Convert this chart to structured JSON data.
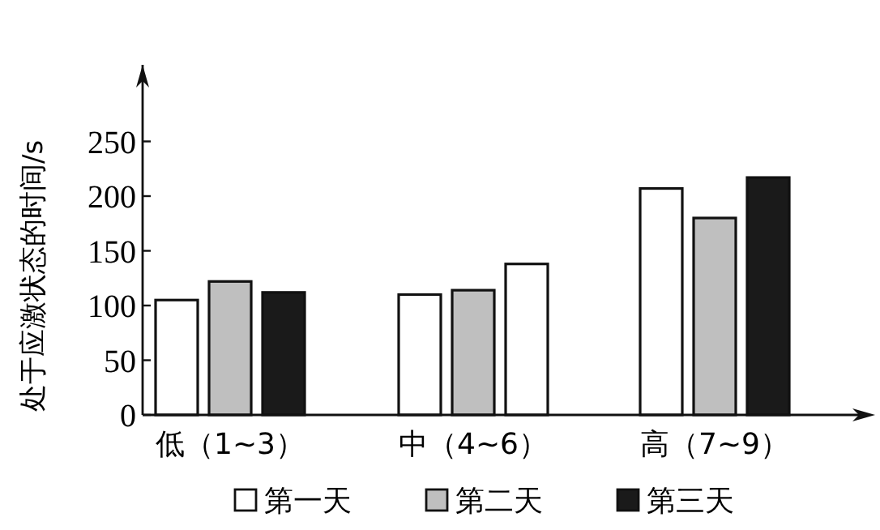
{
  "chart_data": {
    "type": "bar",
    "ylabel": "处于应激状态的时间/s",
    "categories": [
      "低（1~3）",
      "中（4~6）",
      "高（7~9）"
    ],
    "series": [
      {
        "name": "第一天",
        "color": "#ffffff",
        "values": [
          105,
          110,
          207
        ]
      },
      {
        "name": "第二天",
        "color": "#bfbfbf",
        "values": [
          122,
          114,
          180
        ]
      },
      {
        "name": "第三天",
        "color": "#1a1a1a",
        "colors": [
          "#1a1a1a",
          "#ffffff",
          "#1a1a1a"
        ],
        "values": [
          112,
          138,
          217
        ]
      }
    ],
    "ylim": [
      0,
      320
    ],
    "yticks": [
      0,
      50,
      100,
      150,
      200,
      250
    ],
    "grid": false,
    "legend": "bottom"
  }
}
